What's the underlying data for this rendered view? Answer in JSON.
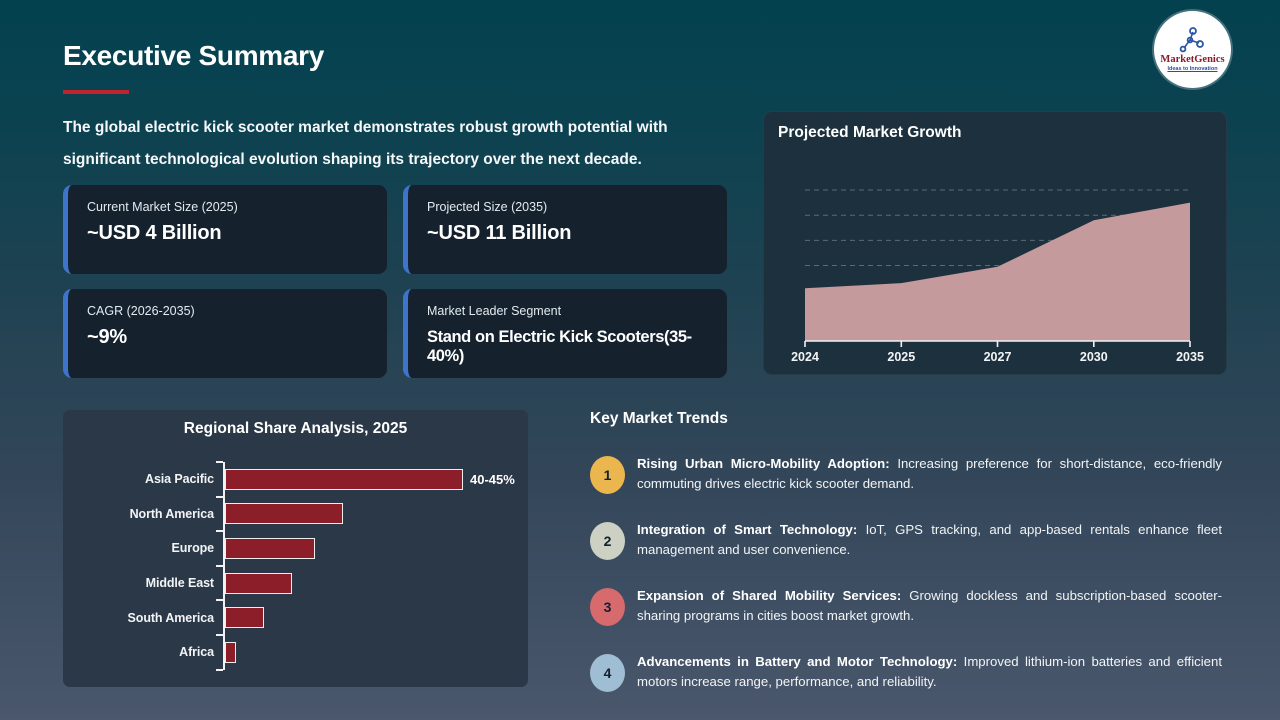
{
  "slide": {
    "title": "Executive Summary",
    "intro_line1": "The global electric kick scooter market demonstrates robust growth potential with",
    "intro_line2": "significant technological evolution shaping its trajectory over the next decade."
  },
  "logo": {
    "name": "MarketGenics",
    "tagline": "Ideas to Innovation"
  },
  "stats": {
    "cards": [
      {
        "label": "Current Market Size (2025)",
        "value": "~USD 4 Billion"
      },
      {
        "label": "Projected Size (2035)",
        "value": "~USD 11 Billion"
      },
      {
        "label": "CAGR (2026-2035)",
        "value": "~9%"
      },
      {
        "label": "Market Leader Segment",
        "value": "Stand on Electric Kick Scooters(35-40%)"
      }
    ]
  },
  "growth_panel": {
    "title": "Projected Market Growth"
  },
  "regional_panel": {
    "title": "Regional Share Analysis, 2025"
  },
  "trends": {
    "heading": "Key Market Trends",
    "items": [
      {
        "num": "1",
        "circle_color": "#ecb64f",
        "title": "Rising Urban Micro-Mobility Adoption:",
        "body": "Increasing preference for short-distance, eco-friendly commuting drives electric kick scooter demand."
      },
      {
        "num": "2",
        "circle_color": "#ccd1c4",
        "title": "Integration of Smart Technology:",
        "body": "IoT, GPS tracking, and app-based rentals enhance fleet management and user convenience."
      },
      {
        "num": "3",
        "circle_color": "#d66a6d",
        "title": "Expansion of Shared Mobility Services:",
        "body": "Growing dockless and subscription-based scooter-sharing programs in cities boost market growth."
      },
      {
        "num": "4",
        "circle_color": "#9fbdd3",
        "title": "Advancements in Battery and Motor Technology:",
        "body": "Improved lithium-ion batteries and efficient motors increase range, performance, and reliability."
      }
    ]
  },
  "colors": {
    "accent_red": "#c1232e",
    "card_accent_blue": "#3e74cc",
    "bar_fill": "#8b1e29",
    "area_fill": "#c49a9d",
    "axis_white": "#eef1f4",
    "logo_name_red": "#8b1a2a",
    "logo_tagline_blue": "#2a4fa0"
  },
  "chart_data": [
    {
      "type": "area",
      "title": "Projected Market Growth",
      "x": [
        "2024",
        "2025",
        "2027",
        "2030",
        "2035"
      ],
      "values": [
        4.2,
        4.6,
        5.9,
        9.6,
        11
      ],
      "unit": "USD Billion",
      "ylim": [
        0,
        15.5
      ],
      "gridline_values": [
        6,
        8,
        10,
        12
      ],
      "grid": "dashed-horizontal",
      "legend": "none"
    },
    {
      "type": "bar",
      "title": "Regional Share Analysis, 2025",
      "orientation": "horizontal",
      "categories": [
        "Asia Pacific",
        "North America",
        "Europe",
        "Middle East",
        "South America",
        "Africa"
      ],
      "values": [
        42.5,
        21,
        16,
        12,
        7,
        2
      ],
      "unit": "% market share",
      "value_labels": [
        "40-45%",
        "",
        "",
        "",
        "",
        ""
      ],
      "xlim": [
        0,
        45
      ],
      "legend": "none"
    }
  ]
}
